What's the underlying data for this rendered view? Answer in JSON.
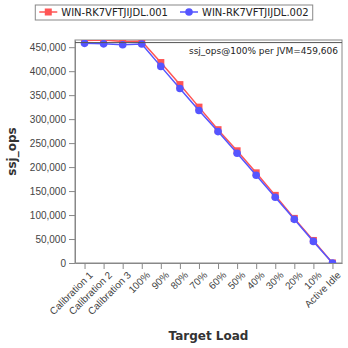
{
  "chart_data": {
    "type": "line",
    "x_label": "Target Load",
    "y_label": "ssj_ops",
    "categories": [
      "Calibration 1",
      "Calibration 2",
      "Calibration 3",
      "100%",
      "90%",
      "80%",
      "70%",
      "60%",
      "50%",
      "40%",
      "30%",
      "20%",
      "10%",
      "Active Idle"
    ],
    "series": [
      {
        "name": "WIN-RK7VFTJIJDL.001",
        "color": "#ff5555",
        "marker": "square",
        "line_style": "solid",
        "values": [
          464000,
          465000,
          462000,
          462500,
          418000,
          372000,
          325000,
          278000,
          234000,
          188000,
          141000,
          93000,
          47000,
          0
        ]
      },
      {
        "name": "WIN-RK7VFTJIJDL.002",
        "color": "#5555ff",
        "marker": "circle",
        "line_style": "solid",
        "values": [
          458000,
          457000,
          455000,
          456700,
          410000,
          364000,
          318000,
          274000,
          229000,
          183000,
          137000,
          91000,
          45000,
          0
        ]
      }
    ],
    "ylim": [
      0,
      465000
    ],
    "yticks": [
      0,
      {
        "value": 50000,
        "label": "50,000"
      },
      {
        "value": 100000,
        "label": "100,000"
      },
      {
        "value": 150000,
        "label": "150,000"
      },
      {
        "value": 200000,
        "label": "200,000"
      },
      {
        "value": 250000,
        "label": "250,000"
      },
      {
        "value": 300000,
        "label": "300,000"
      },
      {
        "value": 350000,
        "label": "350,000"
      },
      {
        "value": 400000,
        "label": "400,000"
      },
      {
        "value": 450000,
        "label": "450,000"
      }
    ],
    "annotations": [
      {
        "text": "ssj_ops@100% per JVM=459,606",
        "y": 459606
      }
    ],
    "grid": false,
    "legend": "top"
  }
}
